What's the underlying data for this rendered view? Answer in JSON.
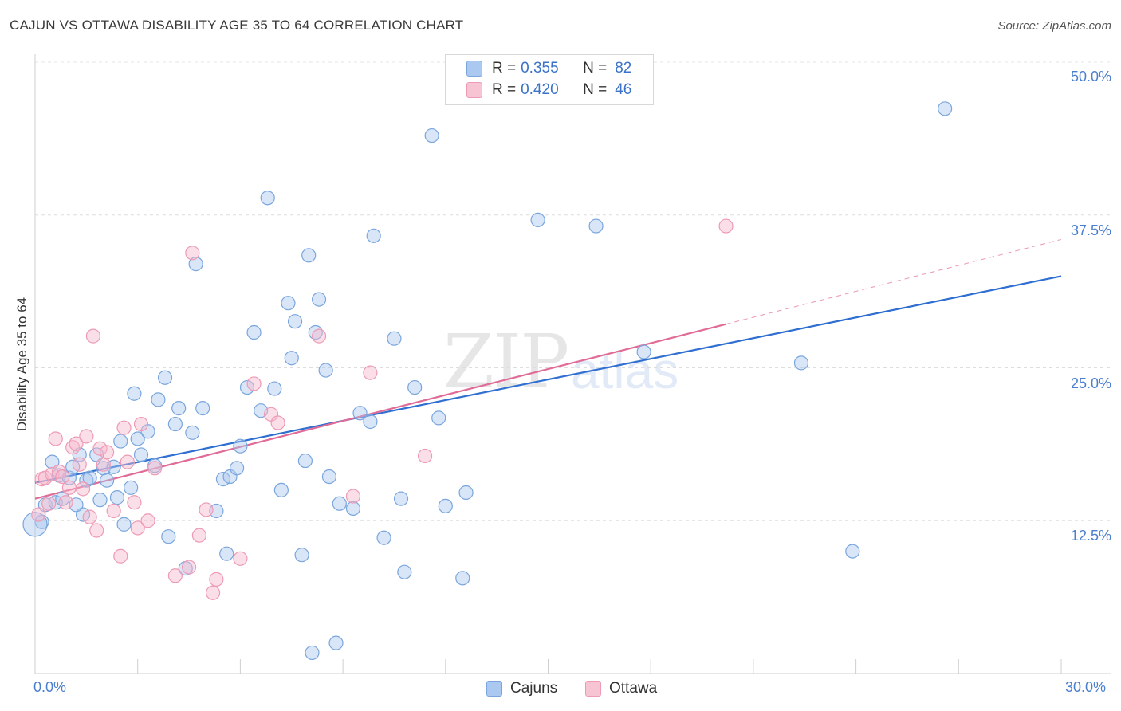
{
  "header": {
    "title": "CAJUN VS OTTAWA DISABILITY AGE 35 TO 64 CORRELATION CHART",
    "source": "Source: ZipAtlas.com"
  },
  "watermark": {
    "zip": "ZIP",
    "atlas": "atlas"
  },
  "legend": {
    "rows": [
      {
        "r_label": "R =",
        "r_value": "0.355",
        "n_label": "N =",
        "n_value": "82",
        "color": "#aac8f0"
      },
      {
        "r_label": "R =",
        "r_value": "0.420",
        "n_label": "N =",
        "n_value": "46",
        "color": "#f7b8cb"
      }
    ]
  },
  "bottom_legend": {
    "items": [
      "Cajuns",
      "Ottawa"
    ]
  },
  "colors": {
    "cajuns_fill": "rgba(170,200,240,0.45)",
    "cajuns_stroke": "#7aa6dd",
    "cajuns_line": "#2f6fd1",
    "ottawa_fill": "rgba(247,184,203,0.45)",
    "ottawa_stroke": "#ee9ab5",
    "ottawa_line": "#e06b96",
    "tick_text": "#4a7fcf"
  },
  "chart_data": {
    "type": "scatter",
    "title": "CAJUN VS OTTAWA DISABILITY AGE 35 TO 64 CORRELATION CHART",
    "xlabel": "",
    "ylabel": "Disability Age 35 to 64",
    "xlim": [
      0,
      30
    ],
    "ylim": [
      0,
      50
    ],
    "x_tick_labels": [
      "0.0%",
      "30.0%"
    ],
    "y_tick_labels": [
      "12.5%",
      "25.0%",
      "37.5%",
      "50.0%"
    ],
    "y_ticks": [
      12.5,
      25,
      37.5,
      50
    ],
    "grid": true,
    "legend_position": "top-center",
    "series": [
      {
        "name": "Cajuns",
        "r": 0.355,
        "n": 82,
        "trend": {
          "x": [
            0,
            30
          ],
          "y": [
            15.6,
            32.5
          ],
          "dashed_from": null
        },
        "points": [
          [
            0.2,
            12.4
          ],
          [
            0.3,
            13.8
          ],
          [
            0.5,
            17.3
          ],
          [
            0.6,
            14
          ],
          [
            0.7,
            16.2
          ],
          [
            0.8,
            14.3
          ],
          [
            1.0,
            16
          ],
          [
            1.1,
            16.9
          ],
          [
            1.3,
            17.9
          ],
          [
            1.4,
            13
          ],
          [
            1.5,
            15.8
          ],
          [
            1.6,
            16
          ],
          [
            1.8,
            17.9
          ],
          [
            1.9,
            14.2
          ],
          [
            2.0,
            16.8
          ],
          [
            2.1,
            15.8
          ],
          [
            2.3,
            16.9
          ],
          [
            2.4,
            14.4
          ],
          [
            2.5,
            19
          ],
          [
            2.6,
            12.2
          ],
          [
            2.8,
            15.2
          ],
          [
            2.9,
            22.9
          ],
          [
            3.0,
            19.2
          ],
          [
            3.1,
            17.9
          ],
          [
            3.3,
            19.8
          ],
          [
            3.5,
            17
          ],
          [
            3.6,
            22.4
          ],
          [
            3.8,
            24.2
          ],
          [
            3.9,
            11.2
          ],
          [
            4.1,
            20.4
          ],
          [
            4.2,
            21.7
          ],
          [
            4.4,
            8.6
          ],
          [
            4.6,
            19.7
          ],
          [
            4.7,
            33.5
          ],
          [
            4.9,
            21.7
          ],
          [
            5.3,
            13.3
          ],
          [
            5.5,
            15.9
          ],
          [
            5.6,
            9.8
          ],
          [
            5.7,
            16.1
          ],
          [
            5.9,
            16.8
          ],
          [
            6.0,
            18.6
          ],
          [
            6.2,
            23.4
          ],
          [
            6.4,
            27.9
          ],
          [
            6.6,
            21.5
          ],
          [
            6.8,
            38.9
          ],
          [
            7.0,
            23.3
          ],
          [
            7.2,
            15
          ],
          [
            7.4,
            30.3
          ],
          [
            7.5,
            25.8
          ],
          [
            7.6,
            28.8
          ],
          [
            7.8,
            9.7
          ],
          [
            7.9,
            17.4
          ],
          [
            8.1,
            1.7
          ],
          [
            8.2,
            27.9
          ],
          [
            8.3,
            30.6
          ],
          [
            8.5,
            24.8
          ],
          [
            8.6,
            16.1
          ],
          [
            8.8,
            2.5
          ],
          [
            8.9,
            13.9
          ],
          [
            9.3,
            13.5
          ],
          [
            9.5,
            21.3
          ],
          [
            9.8,
            20.6
          ],
          [
            9.9,
            35.8
          ],
          [
            10.2,
            11.1
          ],
          [
            10.5,
            27.4
          ],
          [
            10.7,
            14.3
          ],
          [
            10.8,
            8.3
          ],
          [
            11.1,
            23.4
          ],
          [
            11.6,
            44
          ],
          [
            11.8,
            20.9
          ],
          [
            12.0,
            13.7
          ],
          [
            12.5,
            7.8
          ],
          [
            12.6,
            14.8
          ],
          [
            14.7,
            37.1
          ],
          [
            16.4,
            36.6
          ],
          [
            17.8,
            26.3
          ],
          [
            22.4,
            25.4
          ],
          [
            23.9,
            10
          ],
          [
            26.6,
            46.2
          ],
          [
            8.0,
            34.2
          ],
          [
            0.0,
            12.2
          ],
          [
            1.2,
            13.8
          ]
        ]
      },
      {
        "name": "Ottawa",
        "r": 0.42,
        "n": 46,
        "trend": {
          "x": [
            0,
            30
          ],
          "y": [
            14.3,
            35.5
          ],
          "dashed_from": 20.2
        },
        "points": [
          [
            0.1,
            13.0
          ],
          [
            0.2,
            15.9
          ],
          [
            0.3,
            16.0
          ],
          [
            0.4,
            13.9
          ],
          [
            0.5,
            16.3
          ],
          [
            0.6,
            19.2
          ],
          [
            0.7,
            16.5
          ],
          [
            0.8,
            16.1
          ],
          [
            0.9,
            14
          ],
          [
            1.0,
            15.2
          ],
          [
            1.1,
            18.5
          ],
          [
            1.2,
            18.8
          ],
          [
            1.3,
            17.1
          ],
          [
            1.4,
            15.1
          ],
          [
            1.5,
            19.4
          ],
          [
            1.6,
            12.8
          ],
          [
            1.7,
            27.6
          ],
          [
            1.8,
            11.7
          ],
          [
            1.9,
            18.4
          ],
          [
            2.0,
            17.1
          ],
          [
            2.1,
            18.1
          ],
          [
            2.3,
            13.3
          ],
          [
            2.5,
            9.6
          ],
          [
            2.6,
            20.1
          ],
          [
            2.7,
            17.3
          ],
          [
            2.9,
            14
          ],
          [
            3.0,
            11.9
          ],
          [
            3.1,
            20.4
          ],
          [
            3.3,
            12.5
          ],
          [
            3.5,
            16.8
          ],
          [
            4.1,
            8
          ],
          [
            4.5,
            8.7
          ],
          [
            4.6,
            34.4
          ],
          [
            4.8,
            11.3
          ],
          [
            5.0,
            13.4
          ],
          [
            5.2,
            6.6
          ],
          [
            5.3,
            7.7
          ],
          [
            6.0,
            9.4
          ],
          [
            6.4,
            23.7
          ],
          [
            6.9,
            21.2
          ],
          [
            7.1,
            20.5
          ],
          [
            8.3,
            27.6
          ],
          [
            9.3,
            14.5
          ],
          [
            9.8,
            24.6
          ],
          [
            11.4,
            17.8
          ],
          [
            20.2,
            36.6
          ]
        ]
      }
    ]
  }
}
